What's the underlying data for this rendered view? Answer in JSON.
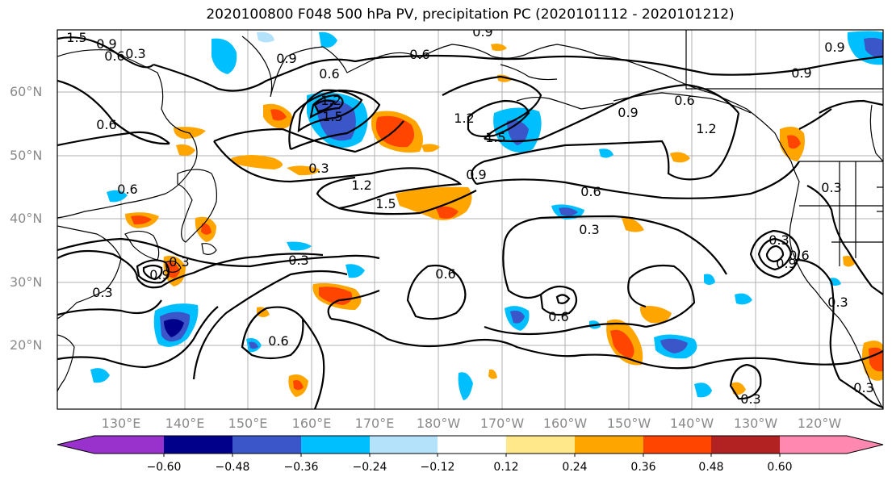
{
  "title": "2020100800 F048 500 hPa PV, precipitation PC (2020101112 - 2020101212)",
  "lat_labels": [
    "60°N",
    "50°N",
    "40°N",
    "30°N",
    "20°N"
  ],
  "lon_labels": [
    "130°E",
    "140°E",
    "150°E",
    "160°E",
    "170°E",
    "180°W",
    "170°W",
    "160°W",
    "150°W",
    "140°W",
    "130°W",
    "120°W"
  ],
  "colorbar": {
    "ticks": [
      "−0.60",
      "−0.48",
      "−0.36",
      "−0.24",
      "−0.12",
      "0.12",
      "0.24",
      "0.36",
      "0.48",
      "0.60"
    ],
    "colors": [
      "#9932cc",
      "#00008b",
      "#3a56c8",
      "#00bfff",
      "#b3e2fa",
      "#ffffff",
      "#ffe88a",
      "#ffa500",
      "#ff4500",
      "#b22222",
      "#ff88b0"
    ]
  },
  "contour_labels": [
    "1.5",
    "0.9",
    "0.6",
    "0.3",
    "0.9",
    "0.6",
    "0.9",
    "0.6",
    "0.9",
    "0.9",
    "1.2",
    "1.5",
    "1.2",
    "1.5",
    "0.9",
    "0.6",
    "0.3",
    "1.2",
    "1.5",
    "0.9",
    "0.6",
    "1.2",
    "0.6",
    "0.3",
    "0.3",
    "0.9",
    "0.3",
    "0.6",
    "0.6",
    "0.6",
    "0.3",
    "0.3",
    "0.9",
    "0.6",
    "0.3",
    "0.6",
    "0.3",
    "0.3",
    "0.3"
  ]
}
